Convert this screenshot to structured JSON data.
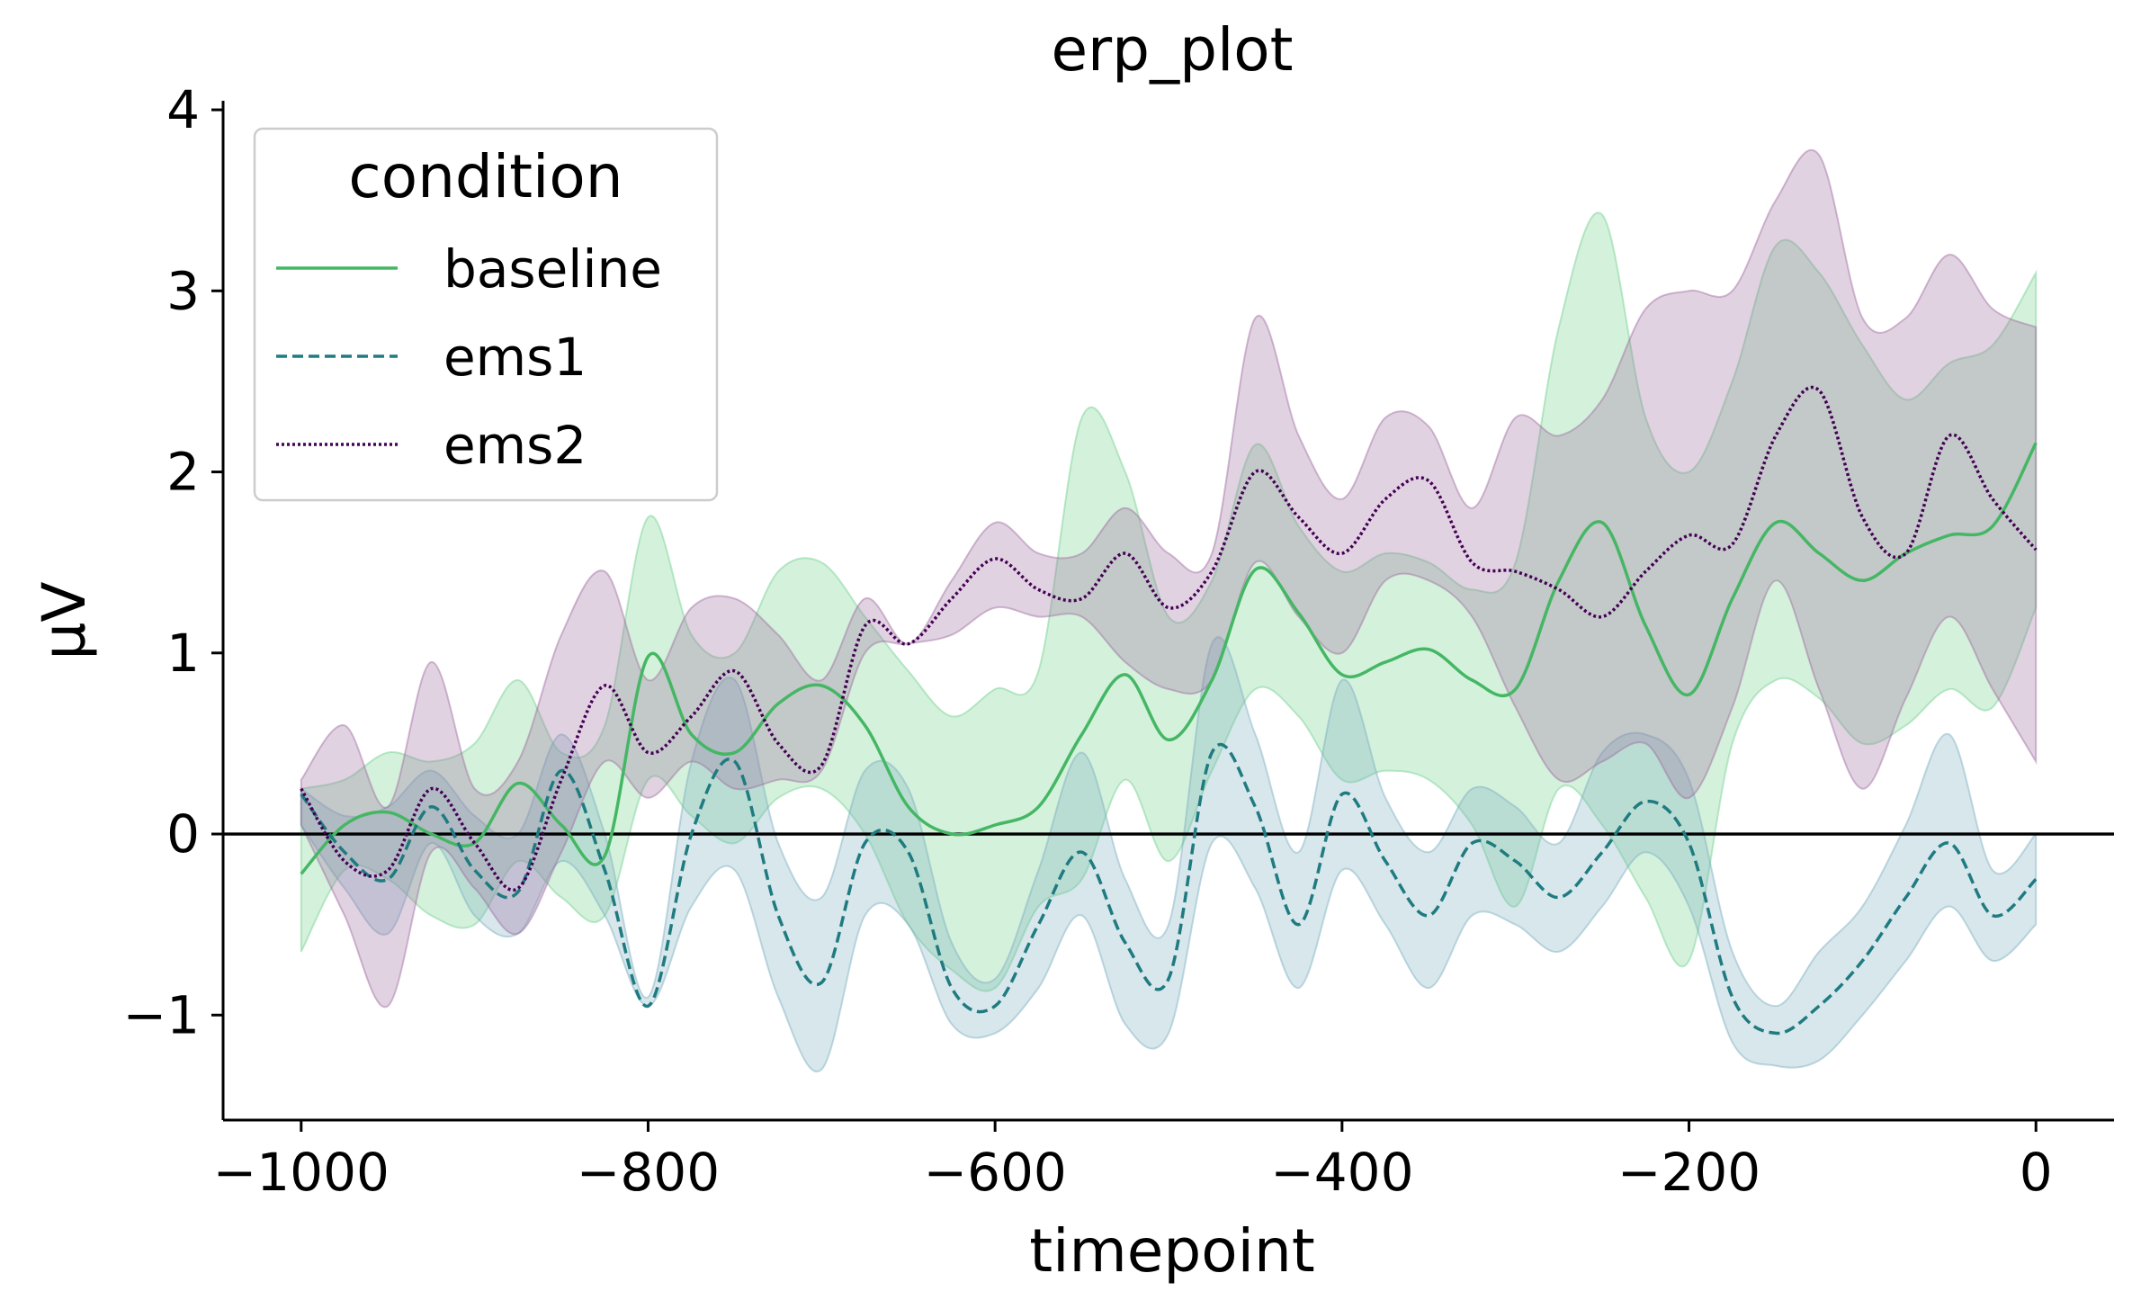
{
  "chart_data": {
    "type": "line",
    "title": "erp_plot",
    "xlabel": "timepoint",
    "ylabel": "µV",
    "xlim": [
      -1045,
      45
    ],
    "ylim": [
      -1.58,
      4.05
    ],
    "xticks": [
      -1000,
      -800,
      -600,
      -400,
      -200,
      0
    ],
    "xtick_labels": [
      "−1000",
      "−800",
      "−600",
      "−400",
      "−200",
      "0"
    ],
    "yticks": [
      -1,
      0,
      1,
      2,
      3,
      4
    ],
    "ytick_labels": [
      "−1",
      "0",
      "1",
      "2",
      "3",
      "4"
    ],
    "grid": false,
    "zero_line": true,
    "legend": {
      "title": "condition",
      "placement": "top-left"
    },
    "series": [
      {
        "name": "baseline",
        "color": "#45b764",
        "band_color": "#6fd08c",
        "dash": "solid",
        "x": [
          -1000,
          -975,
          -950,
          -925,
          -900,
          -875,
          -850,
          -825,
          -800,
          -775,
          -750,
          -725,
          -700,
          -675,
          -650,
          -625,
          -600,
          -575,
          -550,
          -525,
          -500,
          -475,
          -450,
          -425,
          -400,
          -375,
          -350,
          -325,
          -300,
          -275,
          -250,
          -225,
          -200,
          -175,
          -150,
          -125,
          -100,
          -75,
          -50,
          -25,
          0
        ],
        "y": [
          -0.22,
          0.05,
          0.12,
          0.0,
          -0.05,
          0.28,
          0.05,
          -0.12,
          0.98,
          0.55,
          0.45,
          0.72,
          0.82,
          0.6,
          0.15,
          0.0,
          0.05,
          0.15,
          0.55,
          0.88,
          0.52,
          0.85,
          1.46,
          1.22,
          0.88,
          0.95,
          1.02,
          0.85,
          0.8,
          1.4,
          1.72,
          1.15,
          0.77,
          1.3,
          1.72,
          1.55,
          1.4,
          1.55,
          1.65,
          1.7,
          2.16
        ],
        "lower": [
          -0.65,
          -0.2,
          -0.25,
          -0.45,
          -0.5,
          -0.15,
          -0.35,
          -0.45,
          0.3,
          0.1,
          -0.05,
          0.2,
          0.25,
          0.0,
          -0.5,
          -0.75,
          -0.85,
          -0.4,
          -0.25,
          0.3,
          -0.15,
          0.35,
          0.8,
          0.65,
          0.3,
          0.35,
          0.3,
          0.05,
          -0.4,
          0.25,
          0.05,
          -0.35,
          -0.7,
          0.5,
          0.85,
          0.75,
          0.5,
          0.6,
          0.8,
          0.7,
          1.25
        ],
        "upper": [
          0.25,
          0.3,
          0.45,
          0.4,
          0.5,
          0.85,
          0.45,
          0.6,
          1.75,
          1.1,
          1.0,
          1.45,
          1.5,
          1.2,
          0.9,
          0.65,
          0.8,
          0.9,
          2.3,
          2.0,
          1.2,
          1.4,
          2.15,
          1.7,
          1.45,
          1.55,
          1.5,
          1.35,
          1.5,
          2.8,
          3.42,
          2.3,
          2.0,
          2.5,
          3.25,
          3.1,
          2.7,
          2.4,
          2.6,
          2.7,
          3.1
        ]
      },
      {
        "name": "ems1",
        "color": "#1f7b80",
        "band_color": "#7aaebf",
        "dash": "12,6",
        "x": [
          -1000,
          -975,
          -950,
          -925,
          -900,
          -875,
          -850,
          -825,
          -800,
          -775,
          -750,
          -725,
          -700,
          -675,
          -650,
          -625,
          -600,
          -575,
          -550,
          -525,
          -500,
          -475,
          -450,
          -425,
          -400,
          -375,
          -350,
          -325,
          -300,
          -275,
          -250,
          -225,
          -200,
          -175,
          -150,
          -125,
          -100,
          -75,
          -50,
          -25,
          0
        ],
        "y": [
          0.22,
          -0.1,
          -0.25,
          0.15,
          -0.2,
          -0.32,
          0.35,
          -0.2,
          -0.95,
          0.0,
          0.4,
          -0.45,
          -0.82,
          -0.05,
          -0.1,
          -0.85,
          -0.95,
          -0.5,
          -0.1,
          -0.6,
          -0.8,
          0.45,
          0.15,
          -0.5,
          0.22,
          -0.15,
          -0.45,
          -0.05,
          -0.15,
          -0.35,
          -0.1,
          0.18,
          -0.05,
          -0.9,
          -1.1,
          -0.95,
          -0.7,
          -0.35,
          -0.05,
          -0.45,
          -0.25
        ],
        "lower": [
          0.05,
          -0.3,
          -0.55,
          -0.05,
          -0.45,
          -0.55,
          -0.15,
          -0.45,
          -0.95,
          -0.4,
          -0.2,
          -0.9,
          -1.3,
          -0.45,
          -0.5,
          -1.05,
          -1.1,
          -0.85,
          -0.45,
          -1.05,
          -1.1,
          -0.05,
          -0.3,
          -0.85,
          -0.2,
          -0.5,
          -0.85,
          -0.45,
          -0.5,
          -0.65,
          -0.4,
          -0.1,
          -0.4,
          -1.15,
          -1.28,
          -1.25,
          -1.0,
          -0.7,
          -0.4,
          -0.7,
          -0.5
        ],
        "upper": [
          0.25,
          0.1,
          0.15,
          0.35,
          0.1,
          0.0,
          0.55,
          0.0,
          -0.9,
          0.4,
          0.85,
          -0.05,
          -0.35,
          0.35,
          0.25,
          -0.6,
          -0.8,
          -0.2,
          0.45,
          -0.25,
          -0.5,
          1.05,
          0.55,
          -0.1,
          0.85,
          0.2,
          -0.1,
          0.25,
          0.15,
          -0.05,
          0.45,
          0.55,
          0.3,
          -0.65,
          -0.95,
          -0.65,
          -0.4,
          0.05,
          0.55,
          -0.2,
          0.0
        ]
      },
      {
        "name": "ems2",
        "color": "#440154",
        "band_color": "#9d6a9e",
        "dash": "3,3",
        "x": [
          -1000,
          -975,
          -950,
          -925,
          -900,
          -875,
          -850,
          -825,
          -800,
          -775,
          -750,
          -725,
          -700,
          -675,
          -650,
          -625,
          -600,
          -575,
          -550,
          -525,
          -500,
          -475,
          -450,
          -425,
          -400,
          -375,
          -350,
          -325,
          -300,
          -275,
          -250,
          -225,
          -200,
          -175,
          -150,
          -125,
          -100,
          -75,
          -50,
          -25,
          0
        ],
        "y": [
          0.25,
          -0.15,
          -0.2,
          0.25,
          -0.05,
          -0.3,
          0.3,
          0.82,
          0.45,
          0.65,
          0.9,
          0.5,
          0.38,
          1.15,
          1.05,
          1.3,
          1.52,
          1.35,
          1.3,
          1.55,
          1.25,
          1.45,
          2.0,
          1.75,
          1.55,
          1.85,
          1.95,
          1.5,
          1.45,
          1.35,
          1.2,
          1.45,
          1.65,
          1.6,
          2.2,
          2.45,
          1.75,
          1.55,
          2.2,
          1.85,
          1.57
        ],
        "lower": [
          0.05,
          -0.45,
          -0.95,
          -0.1,
          -0.3,
          -0.55,
          -0.1,
          0.4,
          0.2,
          0.4,
          0.25,
          0.3,
          0.35,
          1.0,
          1.05,
          1.1,
          1.25,
          1.2,
          1.2,
          0.95,
          0.8,
          0.85,
          1.5,
          1.2,
          1.0,
          1.4,
          1.4,
          1.2,
          0.7,
          0.3,
          0.4,
          0.5,
          0.2,
          0.7,
          1.4,
          0.8,
          0.25,
          0.75,
          1.2,
          0.8,
          0.4
        ],
        "upper": [
          0.3,
          0.6,
          0.15,
          0.95,
          0.25,
          0.4,
          1.1,
          1.45,
          0.85,
          1.25,
          1.3,
          1.1,
          0.85,
          1.3,
          1.05,
          1.4,
          1.72,
          1.55,
          1.55,
          1.8,
          1.55,
          1.55,
          2.85,
          2.2,
          1.85,
          2.3,
          2.25,
          1.8,
          2.3,
          2.2,
          2.4,
          2.9,
          3.0,
          3.0,
          3.5,
          3.75,
          2.85,
          2.85,
          3.2,
          2.9,
          2.8
        ]
      }
    ]
  }
}
